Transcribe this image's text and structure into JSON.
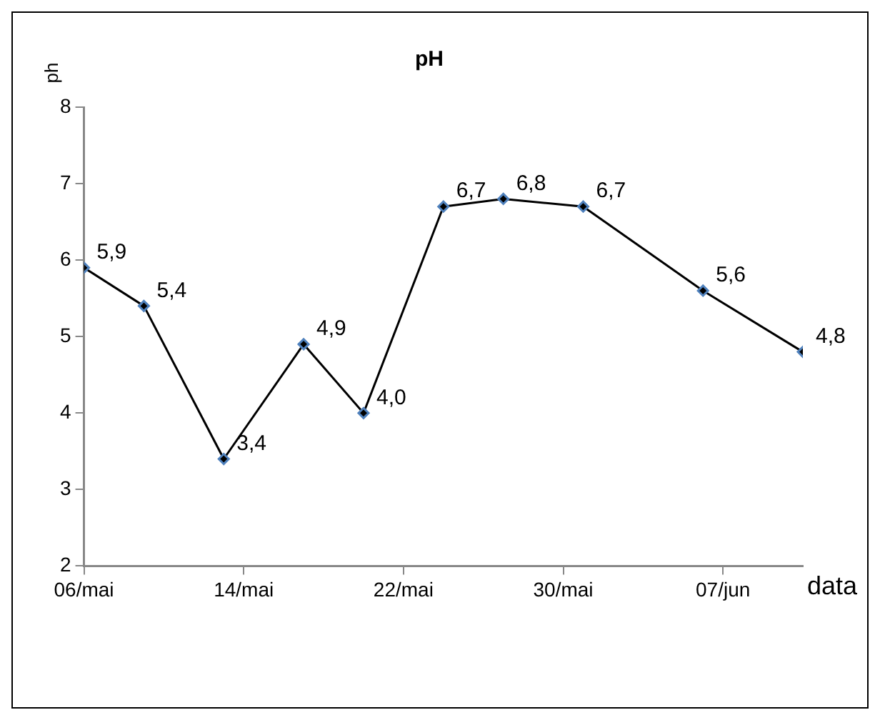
{
  "chart_data": {
    "type": "line",
    "title": "pH",
    "xlabel": "data",
    "ylabel": "ph",
    "x": [
      "--05-06",
      "--05-09",
      "--05-13",
      "--05-17",
      "--05-20",
      "--05-24",
      "--05-27",
      "--05-31",
      "--06-06",
      "--06-11"
    ],
    "series": [
      {
        "color": "#000000",
        "values": [
          5.9,
          5.4,
          3.4,
          4.9,
          4.0,
          6.7,
          6.8,
          6.7,
          5.6,
          4.8
        ],
        "value_labels": [
          "5,9",
          "5,4",
          "3,4",
          "4,9",
          "4,0",
          "6,7",
          "6,8",
          "6,7",
          "5,6",
          "4,8"
        ]
      }
    ],
    "xlim": [
      "--05-06",
      "--06-11"
    ],
    "xticks": [
      {
        "value": "--05-06",
        "label": "06/mai"
      },
      {
        "value": "--05-14",
        "label": "14/mai"
      },
      {
        "value": "--05-22",
        "label": "22/mai"
      },
      {
        "value": "--05-30",
        "label": "30/mai"
      },
      {
        "value": "--06-07",
        "label": "07/jun"
      }
    ],
    "ylim": [
      2,
      8
    ],
    "yticks": [
      2,
      3,
      4,
      5,
      6,
      7,
      8
    ],
    "grid": false,
    "legend": false,
    "marker": "diamond",
    "line_style": "solid"
  }
}
